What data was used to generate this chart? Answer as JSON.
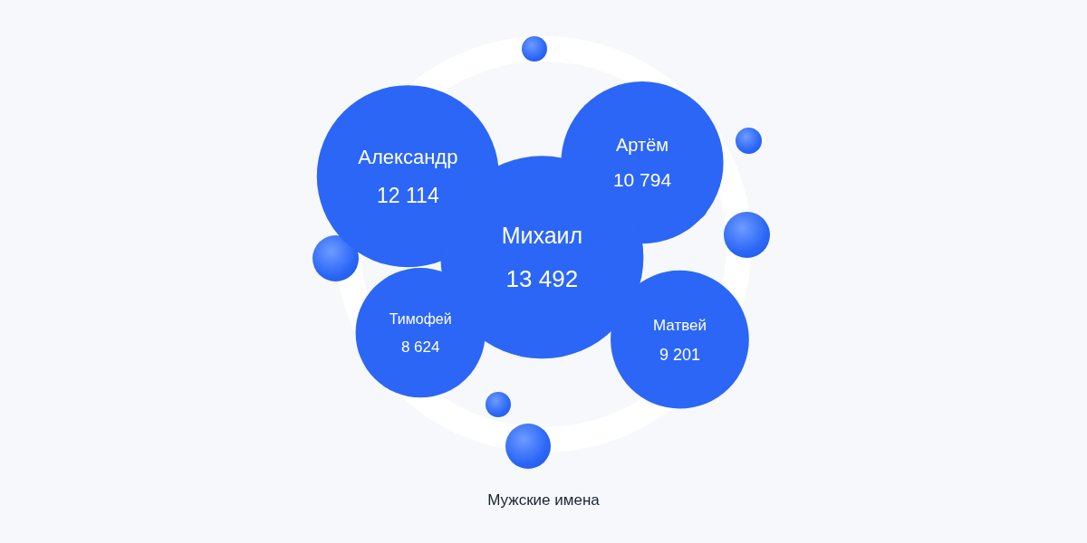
{
  "chart_data": {
    "type": "other",
    "title": "Мужские имена",
    "categories": [
      "Александр",
      "Артём",
      "Михаил",
      "Тимофей",
      "Матвей"
    ],
    "values": [
      12114,
      10794,
      13492,
      8624,
      9201
    ],
    "color": "#2b66f6",
    "data_labels": true
  }
}
